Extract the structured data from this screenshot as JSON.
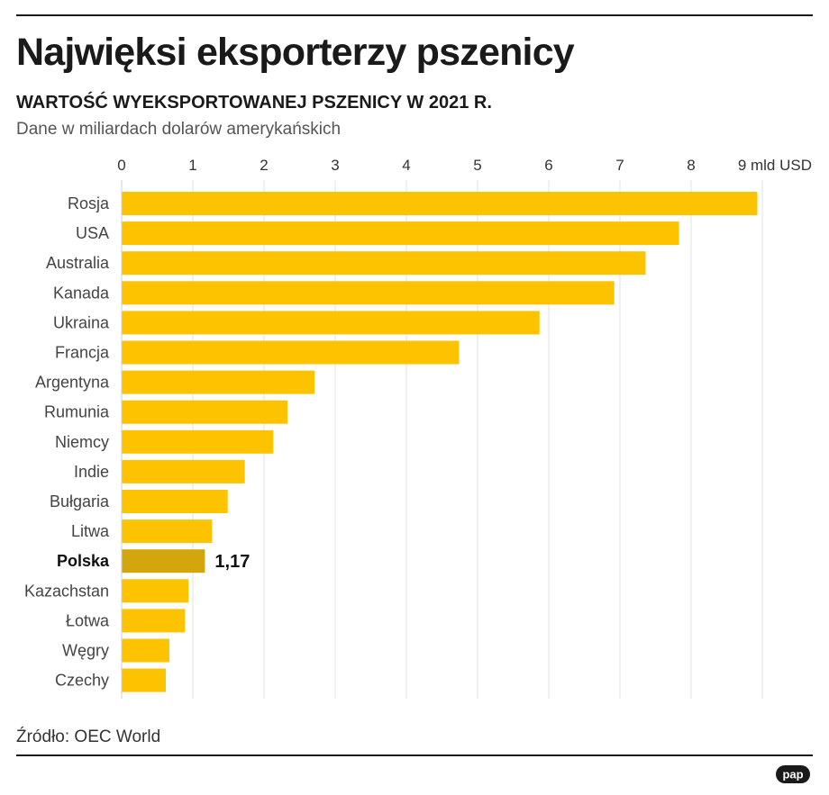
{
  "header": {
    "title": "Najwięksi eksporterzy pszenicy",
    "subtitle": "WARTOŚĆ WYEKSPORTOWANEJ PSZENICY W 2021 R.",
    "units_note": "Dane w miliardach dolarów amerykańskich"
  },
  "footer": {
    "source": "Źródło: OEC World",
    "logo_text": "pap"
  },
  "colors": {
    "bar": "#FDC200",
    "highlight_bar": "#D2A60C"
  },
  "chart_data": {
    "type": "bar",
    "orientation": "horizontal",
    "categories": [
      "Rosja",
      "USA",
      "Australia",
      "Kanada",
      "Ukraina",
      "Francja",
      "Argentyna",
      "Rumunia",
      "Niemcy",
      "Indie",
      "Bułgaria",
      "Litwa",
      "Polska",
      "Kazachstan",
      "Łotwa",
      "Węgry",
      "Czechy"
    ],
    "values": [
      8.93,
      7.83,
      7.36,
      6.92,
      5.87,
      4.74,
      2.71,
      2.33,
      2.13,
      1.73,
      1.49,
      1.27,
      1.17,
      0.94,
      0.89,
      0.67,
      0.62
    ],
    "highlight": "Polska",
    "highlight_label": "1,17",
    "xlim": [
      0,
      9
    ],
    "ticks": [
      "0",
      "1",
      "2",
      "3",
      "4",
      "5",
      "6",
      "7",
      "8",
      "9 mld USD"
    ],
    "grid": true,
    "axis_position": "top"
  }
}
